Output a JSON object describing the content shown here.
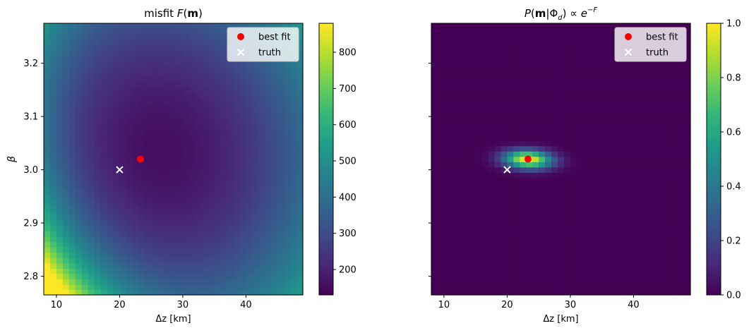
{
  "chart_data": [
    {
      "type": "heatmap",
      "title": "misfit F(m)",
      "title_parts": {
        "pre": "misfit ",
        "italic": "F",
        "open": "(",
        "bold": "m",
        "close": ")"
      },
      "xlabel": "Δz [km]",
      "ylabel": "β",
      "xlim": [
        8,
        49
      ],
      "ylim": [
        2.765,
        3.275
      ],
      "xticks": [
        10,
        20,
        30,
        40
      ],
      "yticks": [
        2.8,
        2.9,
        3.0,
        3.1,
        3.2
      ],
      "colorbar": {
        "min": 130,
        "max": 880,
        "ticks": [
          200,
          300,
          400,
          500,
          600,
          700,
          800
        ],
        "colormap": "viridis"
      },
      "grid": false,
      "field": {
        "description_values": "misfit grid approx.: minimum ~140 near (24, 3.02), rising to ~880 at low Δz / low β corner",
        "min": 140,
        "max": 880
      },
      "points": [
        {
          "name": "best fit",
          "x": 23.3,
          "y": 3.02,
          "marker": "circle",
          "color": "#ff0000"
        },
        {
          "name": "truth",
          "x": 20.0,
          "y": 3.0,
          "marker": "x",
          "color": "#ffffff"
        }
      ],
      "legend": {
        "position": "top-right",
        "entries": [
          "best fit",
          "truth"
        ]
      }
    },
    {
      "type": "heatmap",
      "title": "P(m|Φd) ∝ e^-F",
      "title_parts": {
        "P": "P",
        "open": "(",
        "bold": "m",
        "bar": "|Φ",
        "sub": "d",
        "close": ") ∝ ",
        "e": "e",
        "sup": "−F"
      },
      "xlabel": "Δz [km]",
      "ylabel": "",
      "xlim": [
        8,
        49
      ],
      "ylim": [
        2.765,
        3.275
      ],
      "xticks": [
        10,
        20,
        30,
        40
      ],
      "yticks": [
        2.8,
        2.9,
        3.0,
        3.1,
        3.2
      ],
      "colorbar": {
        "min": 0.0,
        "max": 1.0,
        "ticks": [
          0.0,
          0.2,
          0.4,
          0.6,
          0.8,
          1.0
        ],
        "colormap": "viridis"
      },
      "grid": false,
      "peak": {
        "x": 23.3,
        "y": 3.02,
        "value": 1.0
      },
      "points": [
        {
          "name": "best fit",
          "x": 23.3,
          "y": 3.02,
          "marker": "circle",
          "color": "#ff0000"
        },
        {
          "name": "truth",
          "x": 20.0,
          "y": 3.0,
          "marker": "x",
          "color": "#ffffff"
        }
      ],
      "legend": {
        "position": "top-right",
        "entries": [
          "best fit",
          "truth"
        ]
      }
    }
  ],
  "labels": {
    "x_axis": "Δz [km]",
    "y_axis": "β",
    "legend_best": "best fit",
    "legend_truth": "truth"
  }
}
